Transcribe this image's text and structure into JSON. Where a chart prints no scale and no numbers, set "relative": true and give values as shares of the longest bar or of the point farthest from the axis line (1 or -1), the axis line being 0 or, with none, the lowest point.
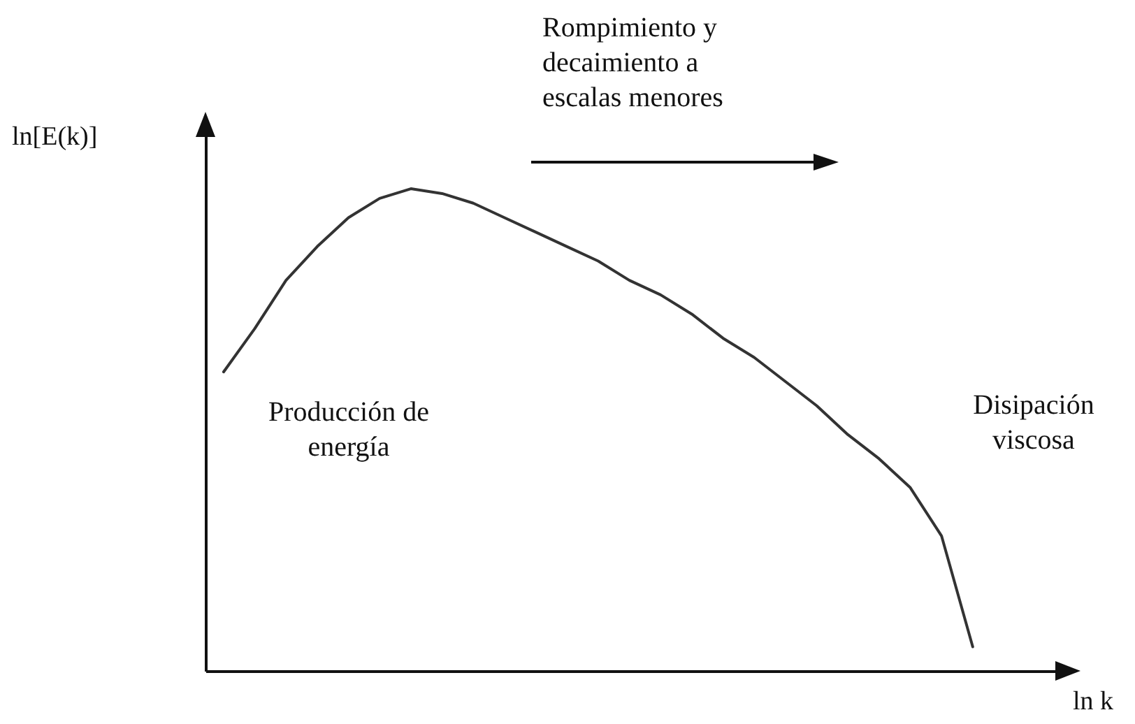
{
  "chart_data": {
    "type": "line",
    "relative": true,
    "xlabel": "ln k",
    "ylabel": "ln[E(k)]",
    "categories": [
      null,
      null,
      null,
      null,
      null,
      null,
      null,
      null,
      null,
      null,
      null,
      null,
      null,
      null,
      null,
      null,
      null,
      null,
      null,
      null,
      null,
      null,
      null,
      null,
      null
    ],
    "series": [
      {
        "color": "#333333",
        "values": [
          0.62,
          0.71,
          0.81,
          0.88,
          0.94,
          0.98,
          1,
          0.99,
          0.97,
          0.94,
          0.91,
          0.88,
          0.85,
          0.81,
          0.78,
          0.74,
          0.69,
          0.65,
          0.6,
          0.55,
          0.49,
          0.44,
          0.38,
          0.28,
          0.05
        ]
      }
    ],
    "annotations": [
      "Rompimiento y decaimiento a escalas menores",
      "Producción de energía",
      "Disipación viscosa"
    ],
    "marker": "none",
    "line_style": "solid",
    "grid": false,
    "legend": false
  }
}
